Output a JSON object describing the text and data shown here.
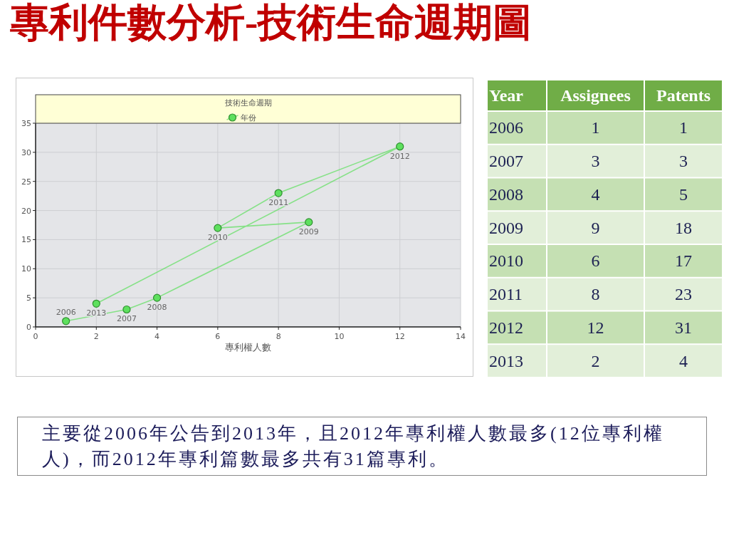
{
  "chart_data": [
    {
      "type": "line",
      "title": "專利件數分析-技術生命週期圖",
      "xlabel": "專利權人數",
      "legend_title": "技術生命週期",
      "series": [
        {
          "name": "年份",
          "color": "#5ee05e",
          "x": [
            1,
            3,
            4,
            9,
            6,
            8,
            12,
            2
          ],
          "values": [
            1,
            3,
            5,
            18,
            17,
            23,
            31,
            4
          ]
        }
      ],
      "xlim": [
        0,
        14
      ],
      "xticks": [
        0,
        2,
        4,
        6,
        8,
        10,
        12,
        14
      ],
      "ylim": [
        0,
        35
      ],
      "yticks": [
        0,
        5,
        10,
        15,
        20,
        25,
        30,
        35
      ],
      "grid": true,
      "legend": "top",
      "marker": "circle",
      "line_style": "solid",
      "annotations": [
        {
          "text": "2006",
          "x": 1,
          "y": 1
        },
        {
          "text": "2007",
          "x": 3,
          "y": 3
        },
        {
          "text": "2008",
          "x": 4,
          "y": 5
        },
        {
          "text": "2009",
          "x": 9,
          "y": 18
        },
        {
          "text": "2010",
          "x": 6,
          "y": 17
        },
        {
          "text": "2011",
          "x": 8,
          "y": 23
        },
        {
          "text": "2012",
          "x": 12,
          "y": 31
        },
        {
          "text": "2013",
          "x": 2,
          "y": 4
        },
        "主要從2006年公告到2013年，且2012年專利權人數最多(12位專利權人)，而2012年專利篇數最多共有31篇專利。"
      ]
    },
    {
      "type": "heatmap",
      "ylabel": "Year",
      "categories": [
        "Assignees",
        "Patents"
      ],
      "y_categories": [
        "2006",
        "2007",
        "2008",
        "2009",
        "2010",
        "2011",
        "2012",
        "2013"
      ],
      "cells": [
        [
          1,
          1
        ],
        [
          3,
          3
        ],
        [
          4,
          5
        ],
        [
          9,
          18
        ],
        [
          6,
          17
        ],
        [
          8,
          23
        ],
        [
          12,
          31
        ],
        [
          2,
          4
        ]
      ],
      "data_labels": true
    }
  ]
}
